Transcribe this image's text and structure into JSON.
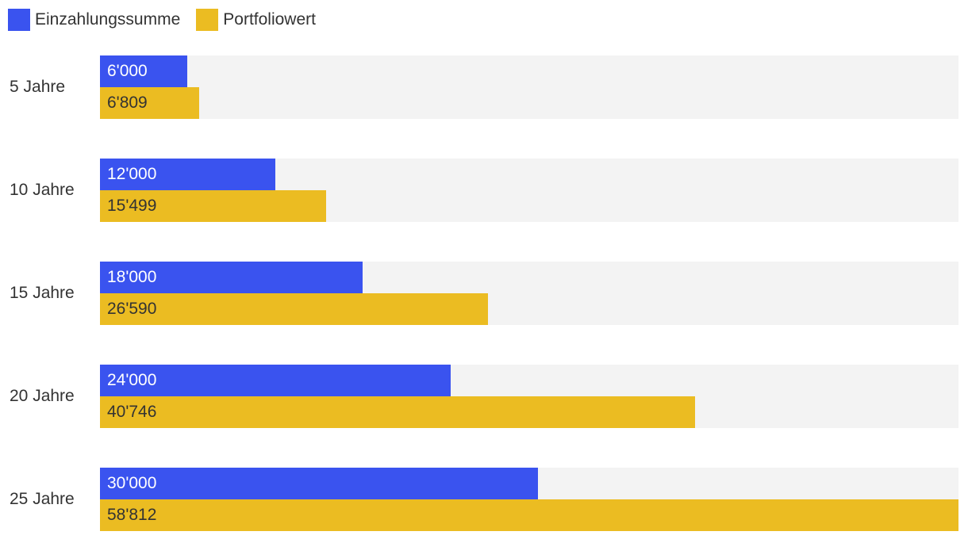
{
  "legend": [
    {
      "label": "Einzahlungssumme",
      "color": "#3a53ef"
    },
    {
      "label": "Portfoliowert",
      "color": "#ebbc22"
    }
  ],
  "chart_data": {
    "type": "bar",
    "orientation": "horizontal",
    "categories": [
      "5 Jahre",
      "10 Jahre",
      "15 Jahre",
      "20 Jahre",
      "25 Jahre"
    ],
    "series": [
      {
        "name": "Einzahlungssumme",
        "color": "#3a53ef",
        "values": [
          6000,
          12000,
          18000,
          24000,
          30000
        ],
        "labels": [
          "6'000",
          "12'000",
          "18'000",
          "24'000",
          "30'000"
        ]
      },
      {
        "name": "Portfoliowert",
        "color": "#ebbc22",
        "values": [
          6809,
          15499,
          26590,
          40746,
          58812
        ],
        "labels": [
          "6'809",
          "15'499",
          "26'590",
          "40'746",
          "58'812"
        ]
      }
    ],
    "xlim": [
      0,
      58812
    ],
    "legend_position": "top-left",
    "track_color": "#f3f3f3"
  }
}
